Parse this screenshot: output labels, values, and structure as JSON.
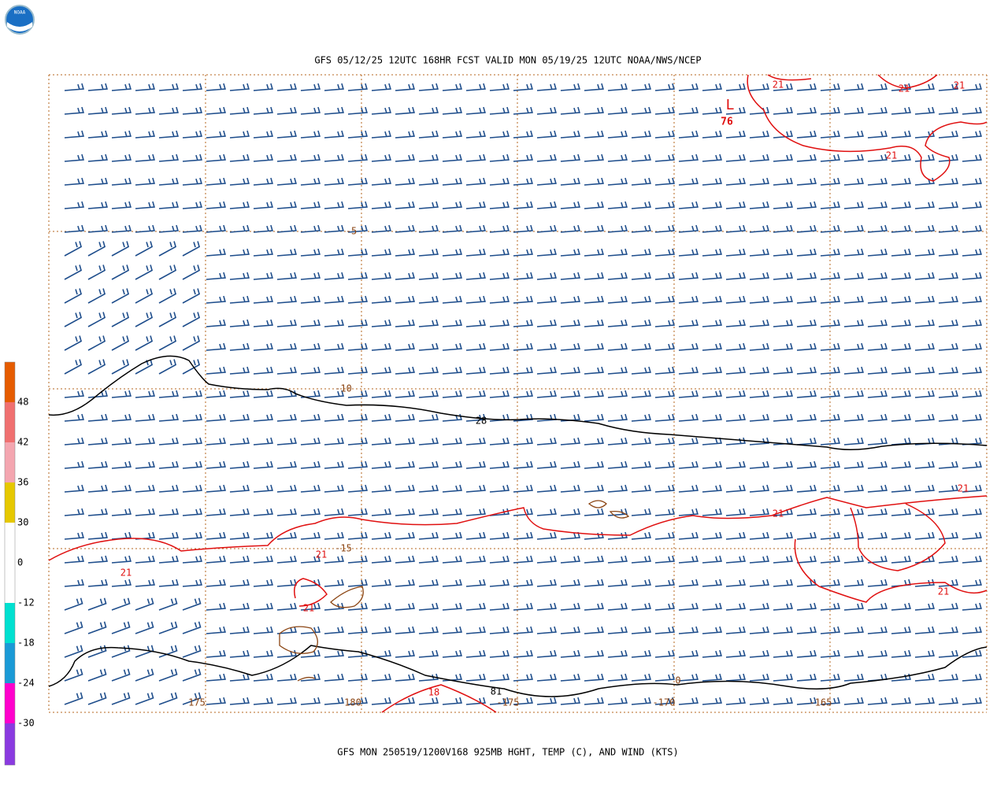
{
  "header": {
    "title": "GFS 05/12/25 12UTC 168HR FCST VALID MON 05/19/25 12UTC NOAA/NWS/NCEP"
  },
  "footer": {
    "caption": "GFS MON 250519/1200V168 925MB HGHT, TEMP (C), AND WIND (KTS)"
  },
  "logo": {
    "text": "NOAA"
  },
  "colorbar": {
    "labels": [
      "48",
      "42",
      "36",
      "30",
      "0",
      "-12",
      "-18",
      "-24",
      "-30"
    ]
  },
  "map": {
    "lat_labels": [
      "-5",
      "-10",
      "-15"
    ],
    "lon_labels": [
      "175",
      "180",
      "-175",
      "-170",
      "-165"
    ],
    "contour_labels": [
      "21",
      "21",
      "21",
      "21",
      "21",
      "21",
      "21",
      "21",
      "21",
      "21",
      "18",
      "28",
      "81",
      "0"
    ],
    "low": {
      "symbol": "L",
      "value": "76"
    }
  }
}
